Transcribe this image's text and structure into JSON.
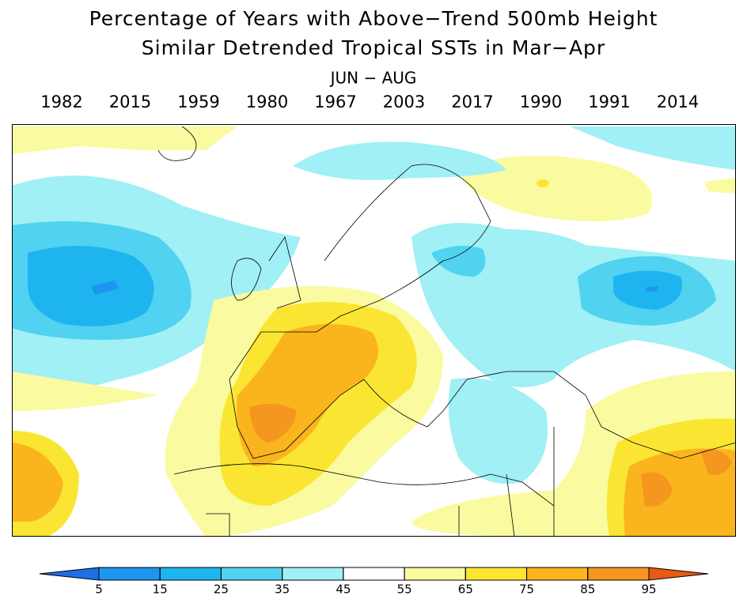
{
  "title": [
    "Percentage of Years with Above−Trend 500mb Height",
    "Similar Detrended Tropical SSTs in Mar−Apr"
  ],
  "season": "JUN − AUG",
  "years": [
    "1982",
    "2015",
    "1959",
    "1980",
    "1967",
    "2003",
    "2017",
    "1990",
    "1991",
    "2014"
  ],
  "colorbar": {
    "ticks": [
      5,
      15,
      25,
      35,
      45,
      55,
      65,
      75,
      85,
      95
    ],
    "colors": [
      "#1e6ee6",
      "#1e96f0",
      "#1eb4f0",
      "#50d2f0",
      "#a0f0f5",
      "#ffffff",
      "#fafaa0",
      "#fae632",
      "#fab41e",
      "#f5961e",
      "#e65a14"
    ]
  }
}
